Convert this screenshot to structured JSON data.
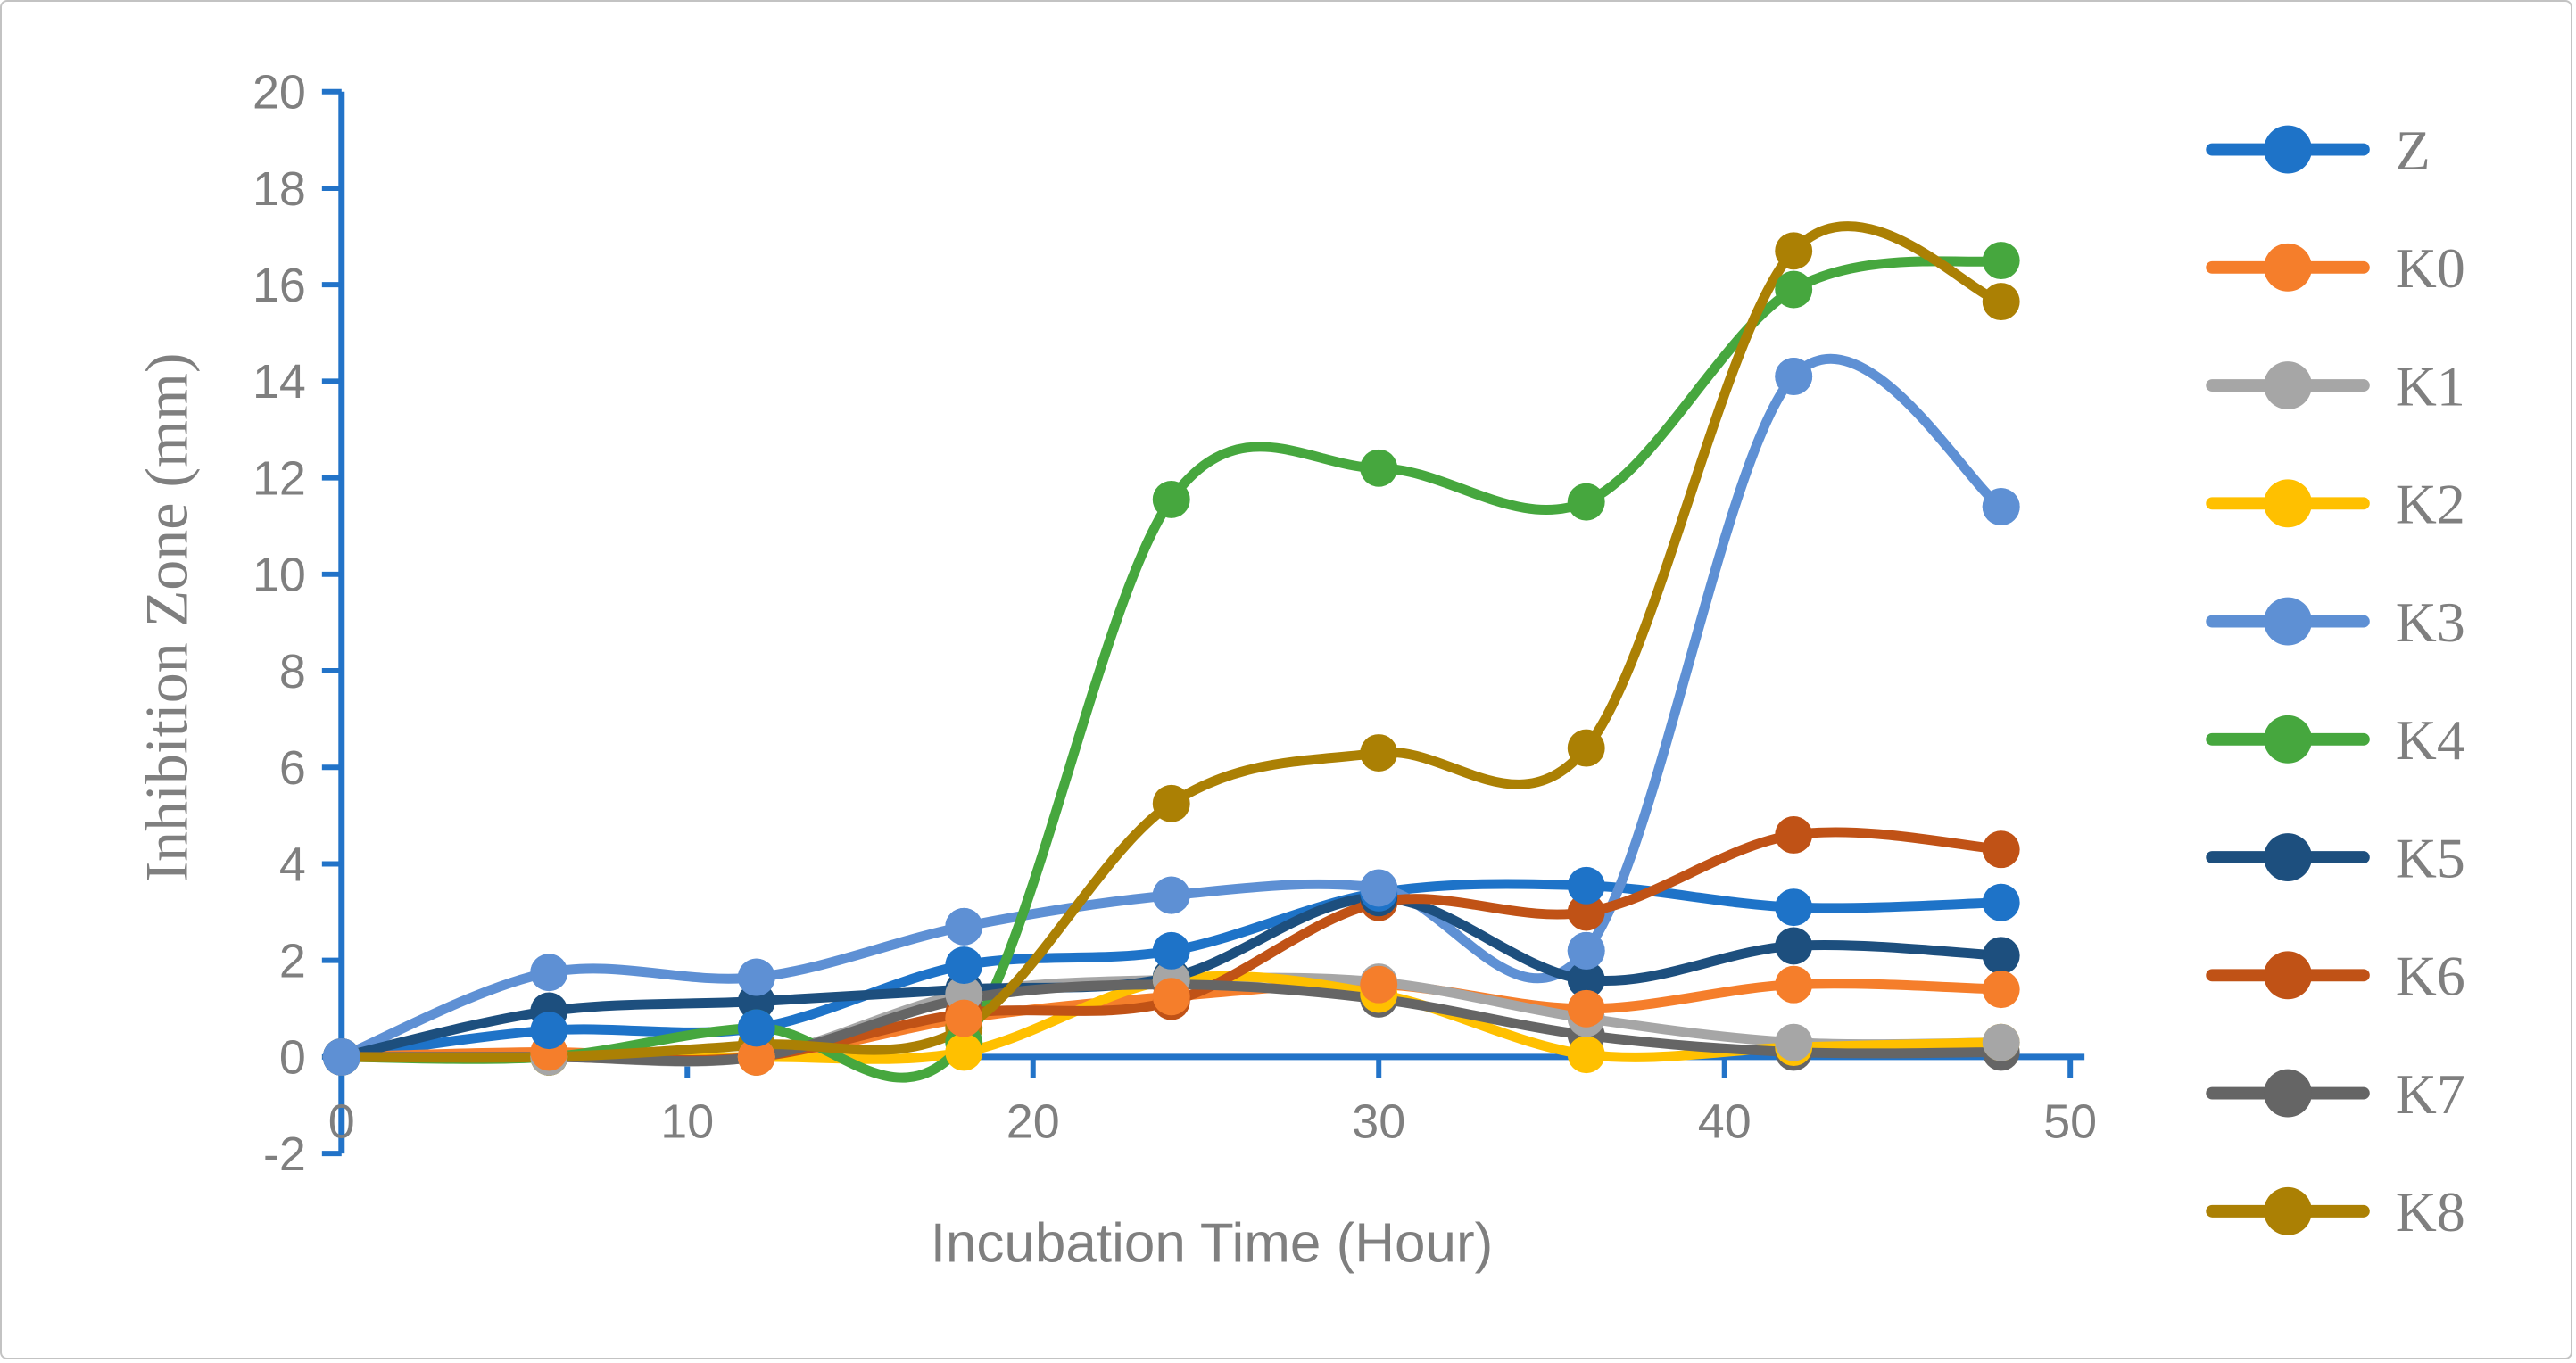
{
  "figure": {
    "border_color": "#c3c3c3",
    "background_color": "#ffffff"
  },
  "chart_data": {
    "type": "line",
    "title": "",
    "xlabel": "Incubation Time (Hour)",
    "ylabel": "Inhibition Zone (mm)",
    "x": [
      0,
      6,
      12,
      18,
      24,
      30,
      36,
      42,
      48
    ],
    "xlim": [
      0,
      50
    ],
    "ylim": [
      -2,
      20
    ],
    "x_ticks": [
      0,
      10,
      20,
      30,
      40,
      50
    ],
    "y_ticks": [
      20,
      18,
      16,
      14,
      12,
      10,
      8,
      6,
      4,
      2,
      0,
      -2
    ],
    "grid": false,
    "smooth": true,
    "legend_position": "right",
    "axis_color": "#2273c8",
    "tick_label_color": "#7f7f7f",
    "axis_title_color": "#7f7f7f",
    "legend_label_color": "#7f7f7f",
    "series": [
      {
        "name": "Z",
        "color": "#1e73c8",
        "values": [
          0,
          0.55,
          0.6,
          1.9,
          2.2,
          3.4,
          3.55,
          3.1,
          3.2
        ]
      },
      {
        "name": "K0",
        "color": "#f57e2b",
        "values": [
          0,
          0.1,
          0,
          0.8,
          1.25,
          1.5,
          1.0,
          1.5,
          1.4
        ]
      },
      {
        "name": "K1",
        "color": "#a6a6a6",
        "values": [
          0,
          0,
          0,
          1.3,
          1.6,
          1.55,
          0.8,
          0.3,
          0.3
        ]
      },
      {
        "name": "K2",
        "color": "#ffc000",
        "values": [
          0,
          0,
          0,
          0.1,
          1.6,
          1.3,
          0.05,
          0.2,
          0.3
        ]
      },
      {
        "name": "K3",
        "color": "#5e90d4",
        "values": [
          0,
          1.75,
          1.65,
          2.7,
          3.35,
          3.5,
          2.2,
          14.1,
          11.4
        ],
        "markers_on_top": true
      },
      {
        "name": "K4",
        "color": "#46a73e",
        "values": [
          0,
          0,
          0.6,
          0.3,
          11.55,
          12.2,
          11.5,
          15.9,
          16.5
        ]
      },
      {
        "name": "K5",
        "color": "#1d4f7e",
        "values": [
          0,
          0.95,
          1.15,
          1.4,
          1.65,
          3.3,
          1.6,
          2.3,
          2.1
        ]
      },
      {
        "name": "K6",
        "color": "#c05216",
        "values": [
          0,
          0,
          0,
          0.9,
          1.15,
          3.2,
          3.0,
          4.6,
          4.3
        ]
      },
      {
        "name": "K7",
        "color": "#656565",
        "values": [
          0,
          0,
          0,
          1.2,
          1.5,
          1.2,
          0.45,
          0.1,
          0.1
        ]
      },
      {
        "name": "K8",
        "color": "#ab8004",
        "values": [
          0,
          0,
          0.25,
          0.6,
          5.25,
          6.3,
          6.4,
          16.7,
          15.65
        ]
      }
    ]
  }
}
